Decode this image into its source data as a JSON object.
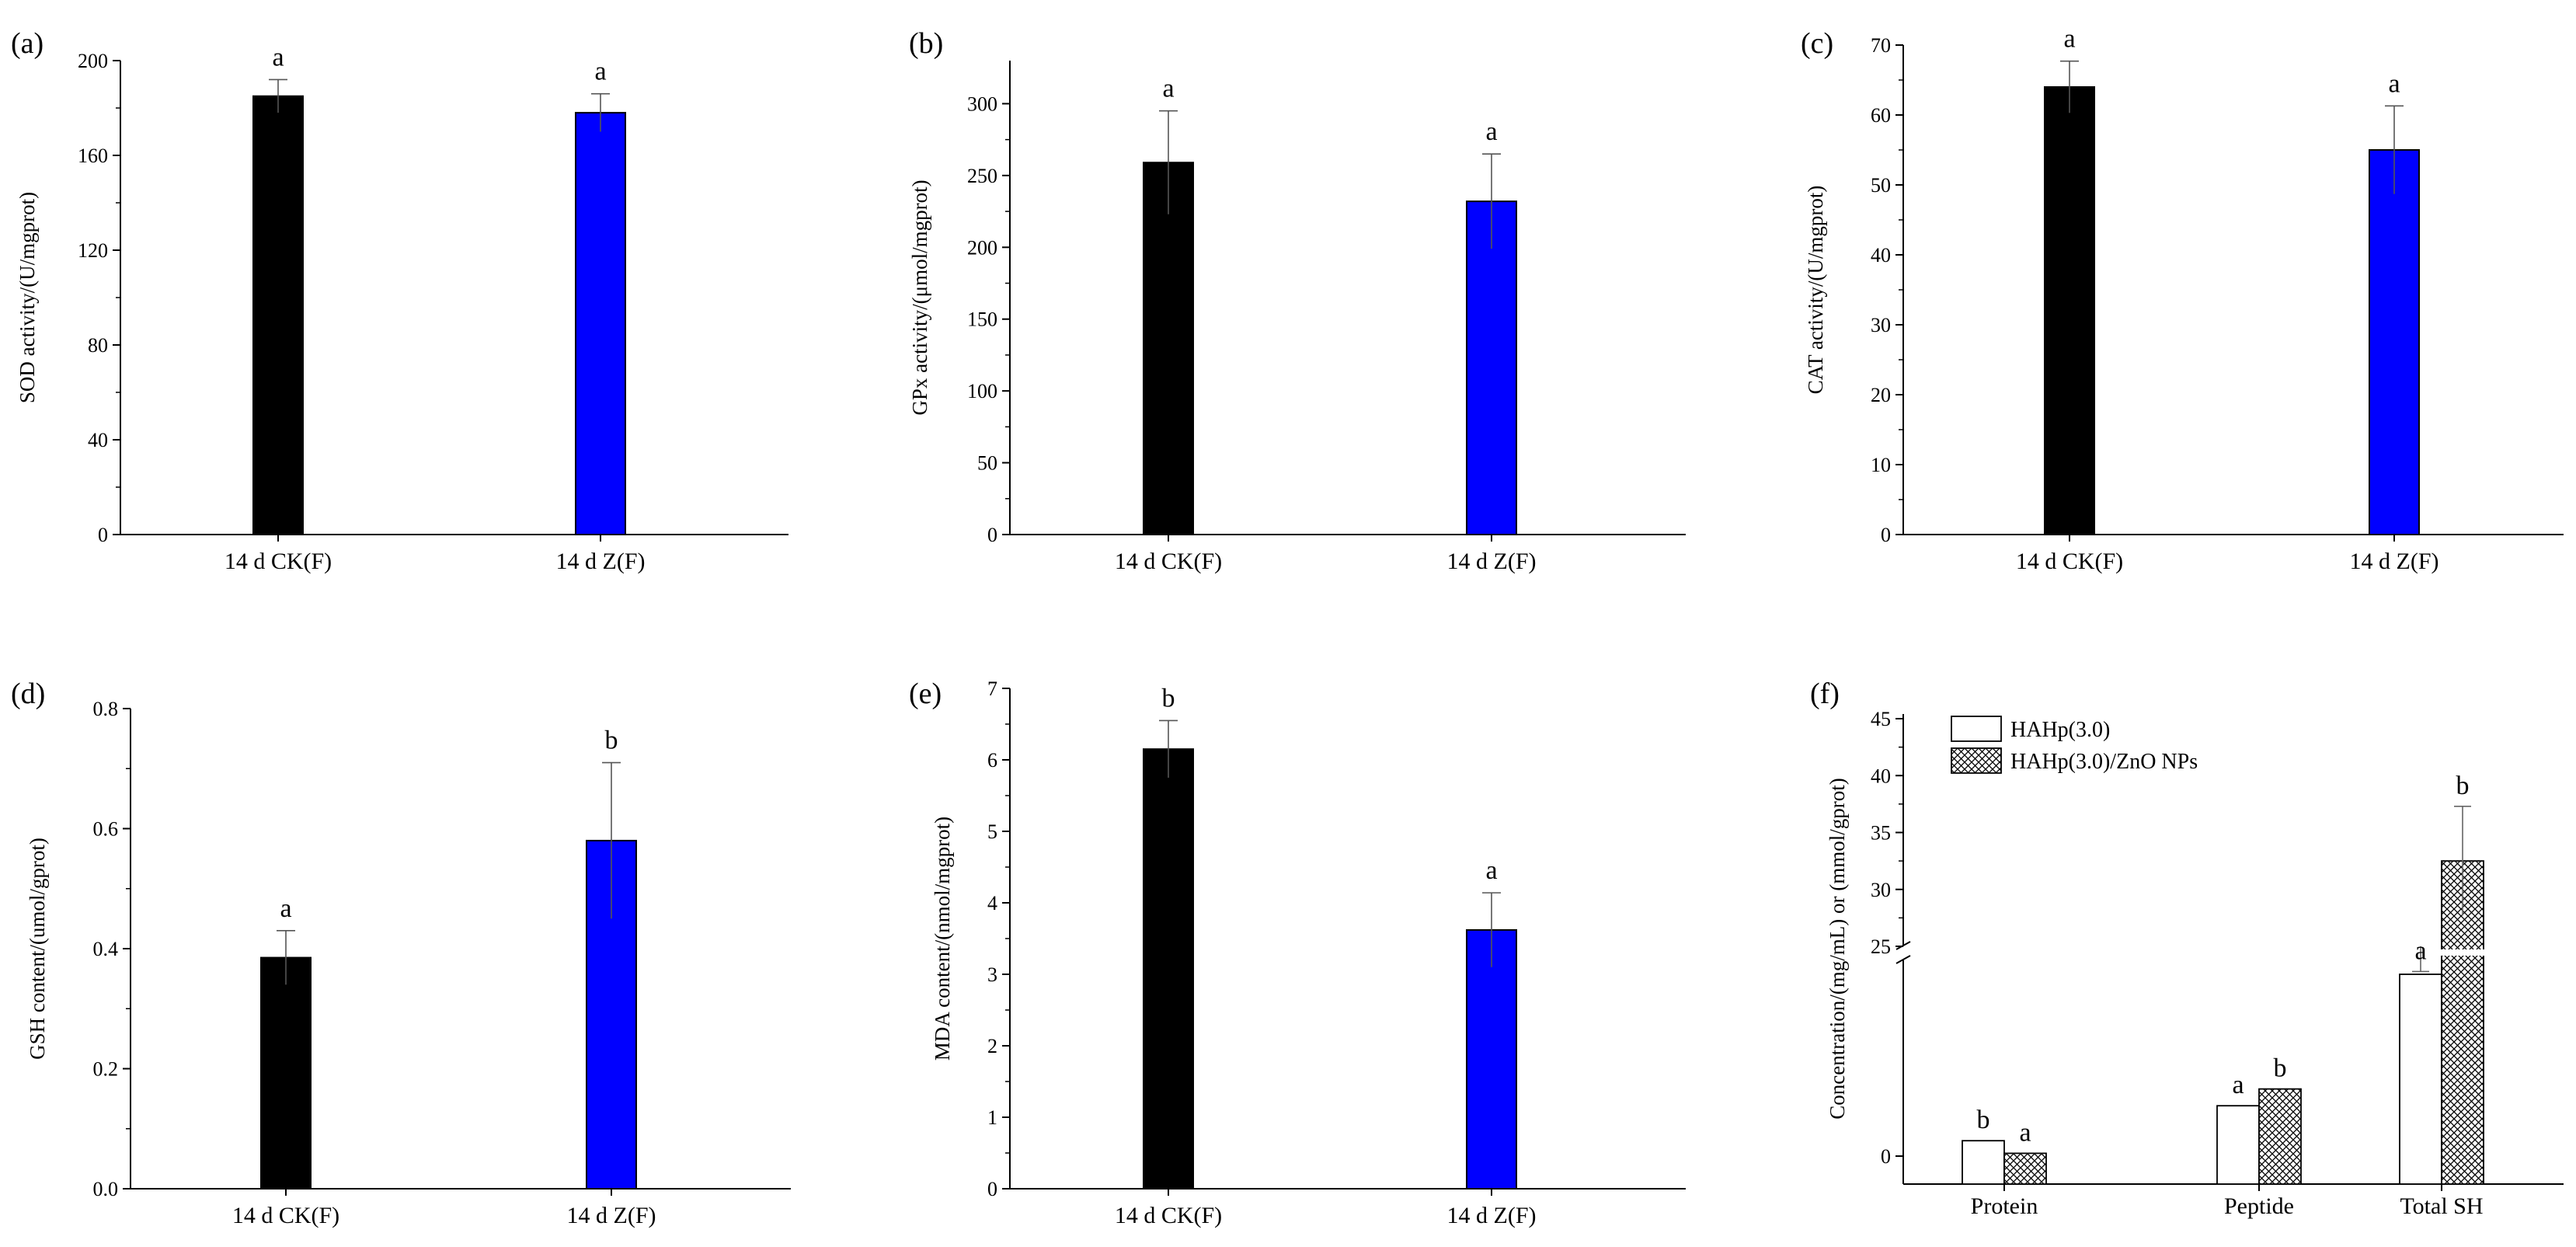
{
  "chart_data": [
    {
      "panel": "(a)",
      "type": "bar",
      "ylabel": "SOD activity/(U/mgprot)",
      "ylim": [
        0,
        200
      ],
      "yticks": [
        0,
        40,
        80,
        120,
        160,
        200
      ],
      "categories": [
        "14 d CK(F)",
        "14 d Z(F)"
      ],
      "values": [
        185,
        178
      ],
      "errors": [
        7,
        8
      ],
      "significance": [
        "a",
        "a"
      ],
      "colors": [
        "#000000",
        "#0000ff"
      ]
    },
    {
      "panel": "(b)",
      "type": "bar",
      "ylabel": "GPx activity/(μmol/mgprot)",
      "ylim": [
        0,
        330
      ],
      "yticks": [
        0,
        50,
        100,
        150,
        200,
        250,
        300
      ],
      "categories": [
        "14 d CK(F)",
        "14 d Z(F)"
      ],
      "values": [
        259,
        232
      ],
      "errors": [
        36,
        33
      ],
      "significance": [
        "a",
        "a"
      ],
      "colors": [
        "#000000",
        "#0000ff"
      ]
    },
    {
      "panel": "(c)",
      "type": "bar",
      "ylabel": "CAT activity/(U/mgprot)",
      "ylim": [
        0,
        70
      ],
      "yticks": [
        0,
        10,
        20,
        30,
        40,
        50,
        60,
        70
      ],
      "categories": [
        "14 d CK(F)",
        "14 d Z(F)"
      ],
      "values": [
        64,
        55
      ],
      "errors": [
        3.7,
        6.3
      ],
      "significance": [
        "a",
        "a"
      ],
      "colors": [
        "#000000",
        "#0000ff"
      ]
    },
    {
      "panel": "(d)",
      "type": "bar",
      "ylabel": "GSH content/(umol/gprot)",
      "ylim": [
        0,
        0.8
      ],
      "yticks": [
        0.0,
        0.2,
        0.4,
        0.6,
        0.8
      ],
      "ytick_labels": [
        "0.0",
        "0.2",
        "0.4",
        "0.6",
        "0.8"
      ],
      "categories": [
        "14 d CK(F)",
        "14 d Z(F)"
      ],
      "values": [
        0.385,
        0.58
      ],
      "errors": [
        0.045,
        0.13
      ],
      "significance": [
        "a",
        "b"
      ],
      "colors": [
        "#000000",
        "#0000ff"
      ]
    },
    {
      "panel": "(e)",
      "type": "bar",
      "ylabel": "MDA content/(nmol/mgprot)",
      "ylim": [
        0,
        7
      ],
      "yticks": [
        0,
        1,
        2,
        3,
        4,
        5,
        6,
        7
      ],
      "categories": [
        "14 d CK(F)",
        "14 d Z(F)"
      ],
      "values": [
        6.15,
        3.62
      ],
      "errors": [
        0.4,
        0.52
      ],
      "significance": [
        "b",
        "a"
      ],
      "colors": [
        "#000000",
        "#0000ff"
      ]
    },
    {
      "panel": "(f)",
      "type": "bar",
      "ylabel": "Concentration/(mg/mL) or (mmol/gprot)",
      "axis_break": true,
      "upper_yticks": [
        25,
        30,
        35,
        40,
        45
      ],
      "lower_yticks": [
        0
      ],
      "categories": [
        "Protein",
        "Peptide",
        "Total SH"
      ],
      "series": [
        {
          "name": "HAHp(3.0)",
          "fill": "white",
          "values": [
            0.55,
            1.8,
            6.5
          ],
          "errors": [
            0,
            0,
            0.1
          ],
          "significance": [
            "b",
            "a",
            "a"
          ]
        },
        {
          "name": "HAHp(3.0)/ZnO NPs",
          "fill": "crosshatch",
          "values": [
            0.1,
            2.4,
            32.5
          ],
          "errors": [
            0,
            0,
            4.8
          ],
          "significance": [
            "a",
            "b",
            "b"
          ]
        }
      ]
    }
  ]
}
